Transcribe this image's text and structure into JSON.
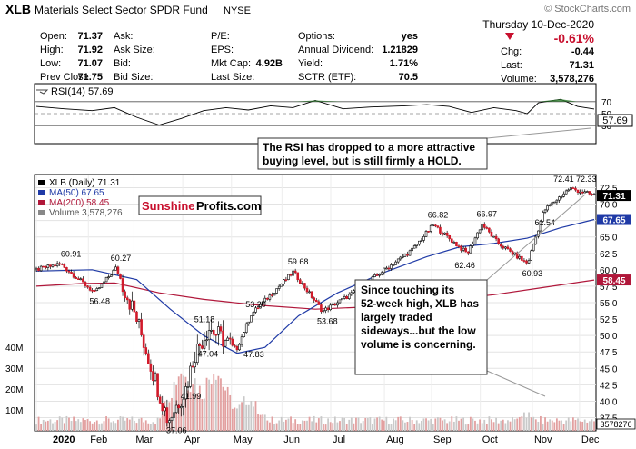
{
  "header": {
    "symbol": "XLB",
    "name": "Materials Select Sector SPDR Fund",
    "exchange": "NYSE",
    "watermark": "© StockCharts.com",
    "date": "Thursday  10-Dec-2020",
    "change_pct": "-0.61%",
    "quote": [
      [
        {
          "label": "Open:",
          "value": "71.37"
        },
        {
          "label": "Ask:",
          "value": ""
        },
        {
          "label": "P/E:",
          "value": ""
        },
        {
          "label": "Options:",
          "value": "yes"
        }
      ],
      [
        {
          "label": "High:",
          "value": "71.92"
        },
        {
          "label": "Ask Size:",
          "value": ""
        },
        {
          "label": "EPS:",
          "value": ""
        },
        {
          "label": "Annual Dividend:",
          "value": "1.21829"
        }
      ],
      [
        {
          "label": "Low:",
          "value": "71.07"
        },
        {
          "label": "Bid:",
          "value": ""
        },
        {
          "label": "Mkt Cap:",
          "value": "4.92B"
        },
        {
          "label": "Yield:",
          "value": "1.71%"
        }
      ],
      [
        {
          "label": "Prev Close:",
          "value": "71.75"
        },
        {
          "label": "Bid Size:",
          "value": ""
        },
        {
          "label": "Last Size:",
          "value": ""
        },
        {
          "label": "SCTR (ETF):",
          "value": "70.5"
        }
      ]
    ],
    "right_stats": [
      {
        "label": "Chg:",
        "value": "-0.44"
      },
      {
        "label": "Last:",
        "value": "71.31"
      },
      {
        "label": "Volume:",
        "value": "3,578,276"
      }
    ]
  },
  "rsi_panel": {
    "legend": "RSI(14) 57.69",
    "ticks": [
      "70",
      "50",
      "30"
    ],
    "last_label": "57.69",
    "annotation": [
      "The RSI has dropped to a more attractive",
      "buying level, but is still firmly a HOLD."
    ]
  },
  "price_panel": {
    "legend": [
      {
        "text": "XLB (Daily) 71.31",
        "color": "#000000"
      },
      {
        "text": "MA(50) 67.65",
        "color": "#1f3aa6"
      },
      {
        "text": "MA(200) 58.45",
        "color": "#b0173a"
      },
      {
        "text": "Volume 3,578,276",
        "color": "#555555"
      }
    ],
    "logo": {
      "part1": "Sunshine",
      "part2": "Profits.com"
    },
    "price_ticks": [
      "72.5",
      "70.0",
      "67.5",
      "65.0",
      "62.5",
      "60.0",
      "57.5",
      "55.0",
      "52.5",
      "50.0",
      "47.5",
      "45.0",
      "42.5",
      "40.0",
      "37.5"
    ],
    "volume_ticks": [
      "40M",
      "30M",
      "20M",
      "10M"
    ],
    "last_labels": [
      {
        "text": "71.31",
        "value": 71.31,
        "bg": "#000000",
        "fg": "#ffffff"
      },
      {
        "text": "67.65",
        "value": 67.65,
        "bg": "#1f3aa6",
        "fg": "#ffffff"
      },
      {
        "text": "58.45",
        "value": 58.45,
        "bg": "#b0173a",
        "fg": "#ffffff"
      }
    ],
    "volume_last": "3578276",
    "annotation": [
      "Since touching its",
      "52-week high, XLB has",
      "largely traded",
      "sideways...but the low",
      "volume is concerning."
    ],
    "x_labels": [
      "2020",
      "Feb",
      "Mar",
      "Apr",
      "May",
      "Jun",
      "Jul",
      "Aug",
      "Sep",
      "Oct",
      "Nov",
      "Dec"
    ]
  },
  "chart_data": {
    "type": "line",
    "title": "XLB Materials Select Sector SPDR Fund NYSE",
    "ylim": [
      35.5,
      74.5
    ],
    "x": [
      "2020-01-02",
      "2020-01-17",
      "2020-01-21",
      "2020-02-07",
      "2020-02-20",
      "2020-03-03",
      "2020-03-23",
      "2020-04-03",
      "2020-04-08",
      "2020-04-17",
      "2020-05-04",
      "2020-05-13",
      "2020-06-08",
      "2020-06-26",
      "2020-07-15",
      "2020-08-03",
      "2020-08-20",
      "2020-09-02",
      "2020-09-23",
      "2020-10-02",
      "2020-10-12",
      "2020-10-30",
      "2020-11-09",
      "2020-11-25",
      "2020-12-10"
    ],
    "series": [
      {
        "name": "XLB (Daily)",
        "values": [
          60.0,
          60.91,
          60.0,
          56.48,
          60.27,
          53.0,
          37.06,
          41.99,
          47.04,
          51.18,
          47.83,
          53.2,
          59.68,
          53.68,
          56.5,
          60.0,
          63.0,
          66.82,
          62.46,
          66.97,
          64.0,
          60.93,
          69.0,
          72.41,
          71.31
        ]
      }
    ],
    "annotations": [
      "60.91",
      "60.27",
      "56.48",
      "37.06",
      "41.99",
      "47.04",
      "51.18",
      "53.20",
      "47.83",
      "59.68",
      "53.68",
      "66.82",
      "62.46",
      "66.97",
      "60.93",
      "72.41",
      "72.33",
      "61.54"
    ],
    "moving_averages": {
      "MA(50)": [
        [
          0,
          59.8
        ],
        [
          0.1,
          60.0
        ],
        [
          0.18,
          58.5
        ],
        [
          0.24,
          54.0
        ],
        [
          0.3,
          50.0
        ],
        [
          0.36,
          47.3
        ],
        [
          0.41,
          48.2
        ],
        [
          0.47,
          53.0
        ],
        [
          0.54,
          56.5
        ],
        [
          0.62,
          59.5
        ],
        [
          0.7,
          62.0
        ],
        [
          0.76,
          63.5
        ],
        [
          0.82,
          64.0
        ],
        [
          0.88,
          64.8
        ],
        [
          0.94,
          66.4
        ],
        [
          1.0,
          67.65
        ]
      ],
      "MA(200)": [
        [
          0,
          57.5
        ],
        [
          0.08,
          57.9
        ],
        [
          0.14,
          58.0
        ],
        [
          0.22,
          56.5
        ],
        [
          0.3,
          55.5
        ],
        [
          0.4,
          54.6
        ],
        [
          0.5,
          54.0
        ],
        [
          0.58,
          54.3
        ],
        [
          0.66,
          55.0
        ],
        [
          0.74,
          55.5
        ],
        [
          0.82,
          56.2
        ],
        [
          0.9,
          57.2
        ],
        [
          1.0,
          58.45
        ]
      ]
    },
    "rsi": [
      [
        0,
        62
      ],
      [
        0.05,
        58
      ],
      [
        0.1,
        55
      ],
      [
        0.14,
        60
      ],
      [
        0.18,
        44
      ],
      [
        0.22,
        31
      ],
      [
        0.26,
        42
      ],
      [
        0.3,
        55
      ],
      [
        0.34,
        60
      ],
      [
        0.38,
        56
      ],
      [
        0.42,
        63
      ],
      [
        0.46,
        60
      ],
      [
        0.5,
        72
      ],
      [
        0.55,
        58
      ],
      [
        0.6,
        61
      ],
      [
        0.66,
        63
      ],
      [
        0.7,
        65
      ],
      [
        0.74,
        62
      ],
      [
        0.78,
        52
      ],
      [
        0.82,
        60
      ],
      [
        0.86,
        55
      ],
      [
        0.88,
        50
      ],
      [
        0.9,
        68
      ],
      [
        0.94,
        74
      ],
      [
        0.97,
        62
      ],
      [
        1.0,
        57.69
      ]
    ],
    "rsi_levels": [
      70,
      50,
      30
    ],
    "volume_spikes": [
      [
        0.26,
        38
      ],
      [
        0.28,
        33
      ],
      [
        0.3,
        24
      ],
      [
        0.32,
        40
      ],
      [
        0.33,
        28
      ],
      [
        0.38,
        20
      ],
      [
        0.88,
        10
      ]
    ]
  }
}
